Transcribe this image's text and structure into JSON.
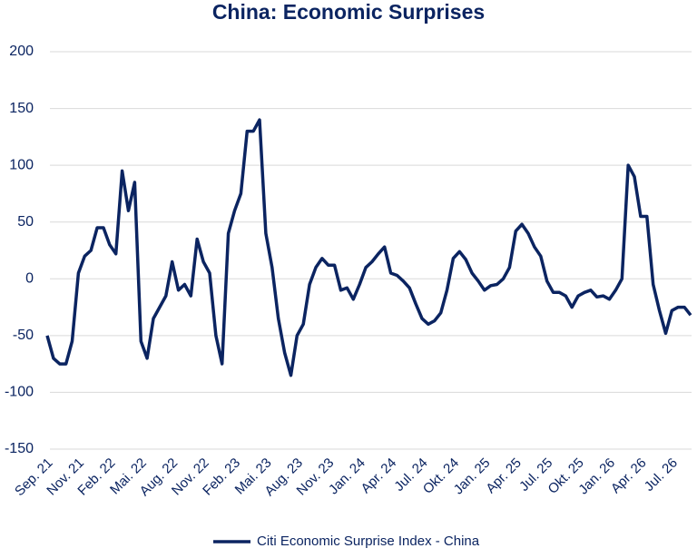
{
  "chart_data": {
    "type": "line",
    "title": "China: Economic Surprises",
    "categories": [
      "Sep. 21",
      null,
      null,
      null,
      null,
      "Nov. 21",
      null,
      null,
      null,
      null,
      "Feb. 22",
      null,
      null,
      null,
      null,
      "Mai. 22",
      null,
      null,
      null,
      null,
      "Aug. 22",
      null,
      null,
      null,
      null,
      "Nov. 22",
      null,
      null,
      null,
      null,
      "Feb. 23",
      null,
      null,
      null,
      null,
      "Mai. 23",
      null,
      null,
      null,
      null,
      "Aug. 23",
      null,
      null,
      null,
      null,
      "Nov. 23",
      null,
      null,
      null,
      null,
      "Jan. 24",
      null,
      null,
      null,
      null,
      "Apr. 24",
      null,
      null,
      null,
      null,
      "Jul. 24",
      null,
      null,
      null,
      null,
      "Okt. 24",
      null,
      null,
      null,
      null,
      "Jan. 25",
      null,
      null,
      null,
      null,
      "Apr. 25",
      null,
      null,
      null,
      null,
      "Jul. 25",
      null,
      null,
      null,
      null,
      "Okt. 25",
      null,
      null,
      null,
      null,
      "Jan. 26",
      null,
      null,
      null,
      null,
      "Apr. 26",
      null,
      null,
      null,
      null,
      "Jul. 26",
      null,
      null,
      null
    ],
    "series": [
      {
        "name": "Citi Economic Surprise Index - China",
        "color": "#0b2461",
        "values": [
          -50,
          -70,
          -75,
          -75,
          -55,
          5,
          20,
          25,
          45,
          45,
          30,
          22,
          95,
          60,
          85,
          -55,
          -70,
          -35,
          -25,
          -15,
          15,
          -10,
          -5,
          -15,
          35,
          15,
          5,
          -50,
          -75,
          40,
          60,
          75,
          130,
          130,
          140,
          40,
          10,
          -35,
          -65,
          -85,
          -50,
          -40,
          -5,
          10,
          18,
          12,
          12,
          -10,
          -8,
          -18,
          -5,
          10,
          15,
          22,
          28,
          5,
          3,
          -2,
          -8,
          -22,
          -35,
          -40,
          -37,
          -30,
          -10,
          18,
          24,
          17,
          5,
          -2,
          -10,
          -6,
          -5,
          0,
          10,
          42,
          48,
          40,
          28,
          20,
          -2,
          -12,
          -12,
          -15,
          -25,
          -15,
          -12,
          -10,
          -16,
          -15,
          -18,
          -10,
          0,
          100,
          90,
          55,
          55,
          -5,
          -28,
          -48,
          -28,
          -25,
          -25,
          -32
        ]
      }
    ],
    "ylim": [
      -150,
      200
    ],
    "yticks": [
      -150,
      -100,
      -50,
      0,
      50,
      100,
      150,
      200
    ],
    "grid": true,
    "legend": "bottom"
  }
}
